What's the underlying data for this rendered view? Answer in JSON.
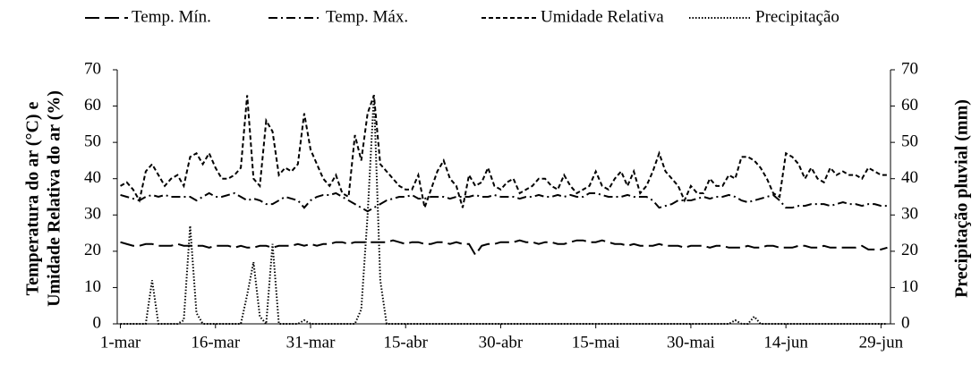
{
  "chart_data": {
    "type": "line",
    "categories": [
      "1-mar",
      null,
      null,
      null,
      null,
      null,
      null,
      null,
      null,
      null,
      null,
      null,
      null,
      null,
      null,
      "16-mar",
      null,
      null,
      null,
      null,
      null,
      null,
      null,
      null,
      null,
      null,
      null,
      null,
      null,
      null,
      "31-mar",
      null,
      null,
      null,
      null,
      null,
      null,
      null,
      null,
      null,
      null,
      null,
      null,
      null,
      null,
      "15-abr",
      null,
      null,
      null,
      null,
      null,
      null,
      null,
      null,
      null,
      null,
      null,
      null,
      null,
      null,
      "30-abr",
      null,
      null,
      null,
      null,
      null,
      null,
      null,
      null,
      null,
      null,
      null,
      null,
      null,
      null,
      "15-mai",
      null,
      null,
      null,
      null,
      null,
      null,
      null,
      null,
      null,
      null,
      null,
      null,
      null,
      null,
      "30-mai",
      null,
      null,
      null,
      null,
      null,
      null,
      null,
      null,
      null,
      null,
      null,
      null,
      null,
      null,
      "14-jun",
      null,
      null,
      null,
      null,
      null,
      null,
      null,
      null,
      null,
      null,
      null,
      null,
      null,
      null,
      "29-jun",
      null
    ],
    "ylabel": [
      "Temperatura do ar (°C) e",
      "Umidade Relativa do ar (%)"
    ],
    "y2label": "Precipitação pluvial (mm)",
    "ylim": [
      0,
      70
    ],
    "yticks": [
      0,
      10,
      20,
      30,
      40,
      50,
      60,
      70
    ],
    "y2lim": [
      0,
      70
    ],
    "y2ticks": [
      0,
      10,
      20,
      30,
      40,
      50,
      60,
      70
    ],
    "legend": "top",
    "series": [
      {
        "name": "Temp. Mín.",
        "color": "#000000",
        "style": "long-dash",
        "values": [
          22.5,
          22,
          21.5,
          21.5,
          22,
          22,
          21.5,
          21.5,
          21.5,
          22,
          21.5,
          21.5,
          21.5,
          21.5,
          21,
          21.5,
          21.5,
          21.5,
          21,
          21.5,
          21,
          21,
          21.5,
          21.5,
          21,
          21.5,
          21.5,
          21.5,
          22,
          21.5,
          22,
          21.5,
          22,
          22,
          22.5,
          22.5,
          22,
          22.5,
          22.5,
          22.5,
          22.5,
          22.5,
          22.5,
          23,
          22.5,
          22,
          22.5,
          22.5,
          22,
          22,
          22.5,
          22.5,
          22,
          22.5,
          22,
          22,
          19,
          21.5,
          22,
          22,
          22.5,
          22.5,
          22.5,
          23,
          22.5,
          22.5,
          22,
          22.5,
          22.5,
          22,
          22,
          22.5,
          23,
          23,
          22.5,
          22.5,
          23,
          22.5,
          22,
          22,
          21.5,
          22,
          21.5,
          21.5,
          21.5,
          22,
          21.5,
          21.5,
          21.5,
          21,
          21.5,
          21.5,
          21.5,
          21,
          21.5,
          21.5,
          21,
          21,
          21,
          21.5,
          21,
          21,
          21.5,
          21.5,
          21,
          21,
          21,
          21.5,
          21.5,
          21,
          21,
          21.5,
          21,
          21,
          21,
          21,
          21,
          21.5,
          20.5,
          20.5,
          20.5,
          21
        ]
      },
      {
        "name": "Temp. Máx.",
        "color": "#000000",
        "style": "dash-dot",
        "values": [
          35.5,
          35,
          34.5,
          34,
          35,
          35.5,
          35,
          35.5,
          35,
          35,
          35,
          35,
          34,
          35,
          36,
          35,
          35,
          35.5,
          36,
          35,
          34,
          34.5,
          34,
          33,
          33,
          34,
          35,
          34.5,
          34,
          32,
          34,
          35,
          35.5,
          35.5,
          36,
          35,
          34,
          33,
          32,
          31,
          32,
          33,
          34,
          34.5,
          35,
          35,
          35.5,
          34.5,
          34.5,
          35,
          35,
          35,
          34.5,
          35,
          35,
          35,
          35.5,
          35,
          35,
          35.5,
          35,
          35,
          35,
          34.5,
          35,
          35,
          35.5,
          35,
          35,
          35.5,
          35,
          35.5,
          35,
          35,
          36,
          36,
          35.5,
          35,
          35,
          35,
          35.5,
          35,
          35,
          35,
          34,
          32,
          32.5,
          33,
          34,
          34,
          34,
          34.5,
          35,
          34.5,
          35,
          35,
          35.5,
          35,
          34,
          33.5,
          34,
          34.5,
          35,
          35.5,
          34,
          32,
          32,
          32.5,
          32.5,
          33,
          33,
          33,
          32.5,
          33,
          33.5,
          33,
          33,
          32.5,
          33,
          33,
          32.5,
          32.5
        ]
      },
      {
        "name": "Umidade Relativa",
        "color": "#000000",
        "style": "short-dash",
        "values": [
          38,
          39,
          37,
          34,
          42,
          44,
          41,
          38,
          40,
          41,
          38,
          46,
          47,
          44,
          47,
          43,
          40,
          40,
          41,
          43,
          63,
          40,
          38,
          56,
          53,
          41,
          43,
          42,
          44,
          58,
          48,
          44,
          40,
          38,
          41,
          36,
          35,
          52,
          45,
          58,
          63,
          44,
          42,
          40,
          38,
          37,
          37,
          41,
          32,
          37,
          42,
          45,
          40,
          38,
          32,
          41,
          38,
          39,
          43,
          38,
          37,
          39,
          40,
          36,
          37,
          38,
          40,
          40,
          38,
          37,
          41,
          38,
          36,
          37,
          38,
          42,
          38,
          37,
          40,
          42,
          38,
          42,
          36,
          38,
          42,
          47,
          42,
          40,
          38,
          34,
          38,
          36,
          36,
          40,
          38,
          38,
          41,
          40,
          46,
          46,
          45,
          43,
          40,
          36,
          35,
          47,
          46,
          44,
          40,
          43,
          40,
          39,
          43,
          41,
          42,
          41,
          41,
          40,
          43,
          42,
          41,
          41
        ]
      },
      {
        "name": "Precipitação",
        "color": "#000000",
        "style": "dot",
        "axis": "y2",
        "values": [
          0,
          0,
          0,
          0,
          0,
          12,
          0,
          0,
          0,
          0,
          1,
          27,
          3,
          0,
          0,
          0,
          0,
          0,
          0,
          0,
          8,
          17,
          2,
          0,
          22,
          0,
          0,
          0,
          0,
          1,
          0,
          0,
          0,
          0,
          0,
          0,
          0,
          0,
          4,
          30,
          63,
          12,
          0,
          0,
          0,
          0,
          0,
          0,
          0,
          0,
          0,
          0,
          0,
          0,
          0,
          0,
          0,
          0,
          0,
          0,
          0,
          0,
          0,
          0,
          0,
          0,
          0,
          0,
          0,
          0,
          0,
          0,
          0,
          0,
          0,
          0,
          0,
          0,
          0,
          0,
          0,
          0,
          0,
          0,
          0,
          0,
          0,
          0,
          0,
          0,
          0,
          0,
          0,
          0,
          0,
          0,
          0,
          1,
          0,
          0,
          2,
          0,
          0,
          0,
          0,
          0,
          0,
          0,
          0,
          0,
          0,
          0,
          0,
          0,
          0,
          0,
          0,
          0,
          0,
          0,
          0,
          0
        ]
      }
    ]
  }
}
